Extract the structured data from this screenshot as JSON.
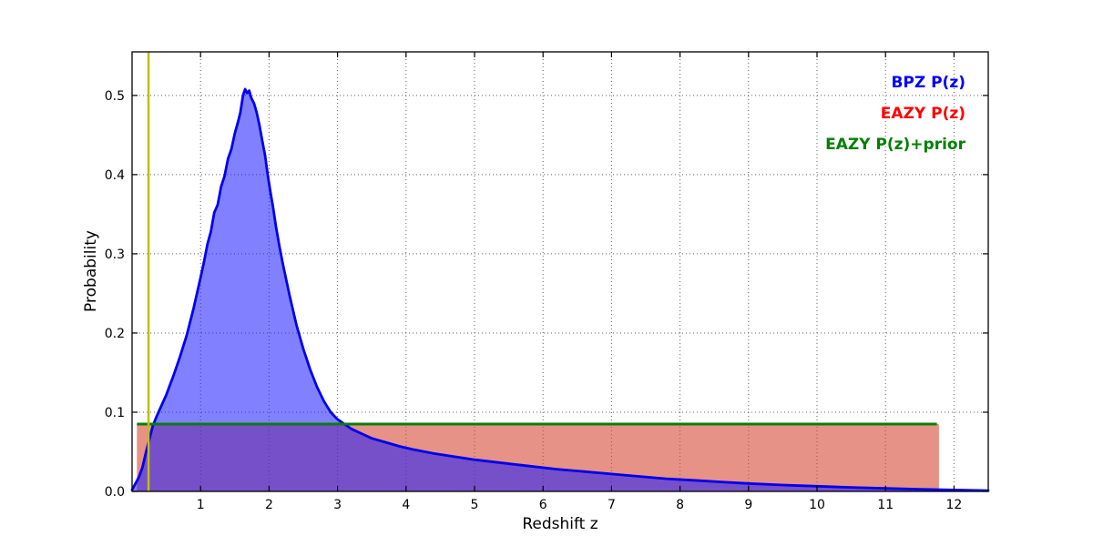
{
  "page": {
    "background": "#ffffff"
  },
  "chart_data": {
    "type": "area",
    "title": "",
    "xlabel": "Redshift z",
    "ylabel": "Probability",
    "xlim": [
      0,
      12.5
    ],
    "ylim": [
      0,
      0.555
    ],
    "grid": {
      "show": true,
      "style": "dotted",
      "color": "#606060"
    },
    "xticks": {
      "values": [
        1,
        2,
        3,
        4,
        5,
        6,
        7,
        8,
        9,
        10,
        11,
        12
      ],
      "labels": [
        "1",
        "2",
        "3",
        "4",
        "5",
        "6",
        "7",
        "8",
        "9",
        "10",
        "11",
        "12"
      ]
    },
    "yticks": {
      "values": [
        0.0,
        0.1,
        0.2,
        0.3,
        0.4,
        0.5
      ],
      "labels": [
        "0.0",
        "0.1",
        "0.2",
        "0.3",
        "0.4",
        "0.5"
      ]
    },
    "legend": {
      "position": "upper right",
      "items": [
        {
          "label": "BPZ P(z)",
          "color": "#0000ff"
        },
        {
          "label": "EAZY P(z)",
          "color": "#ff0000"
        },
        {
          "label": "EAZY P(z)+prior",
          "color": "#008000"
        }
      ]
    },
    "series": [
      {
        "name": "EAZY P(z)",
        "type": "area",
        "line_color": null,
        "line_width": 0,
        "fill_color": "#d4432e",
        "fill_opacity": 0.58,
        "close_to_zero": false,
        "points": [
          [
            0.07,
            0.0
          ],
          [
            0.07,
            0.085
          ],
          [
            11.78,
            0.085
          ],
          [
            11.78,
            0.0
          ]
        ]
      },
      {
        "name": "BPZ P(z)",
        "type": "area",
        "line_color": "#0000ee",
        "line_width": 2.8,
        "fill_color": "#1a1aff",
        "fill_opacity": 0.55,
        "close_to_zero": true,
        "points": [
          [
            0.0,
            0.002
          ],
          [
            0.1,
            0.018
          ],
          [
            0.15,
            0.03
          ],
          [
            0.2,
            0.048
          ],
          [
            0.25,
            0.065
          ],
          [
            0.3,
            0.082
          ],
          [
            0.35,
            0.093
          ],
          [
            0.4,
            0.103
          ],
          [
            0.5,
            0.122
          ],
          [
            0.6,
            0.145
          ],
          [
            0.7,
            0.17
          ],
          [
            0.8,
            0.198
          ],
          [
            0.9,
            0.232
          ],
          [
            1.0,
            0.27
          ],
          [
            1.05,
            0.29
          ],
          [
            1.1,
            0.312
          ],
          [
            1.15,
            0.328
          ],
          [
            1.2,
            0.352
          ],
          [
            1.25,
            0.362
          ],
          [
            1.3,
            0.385
          ],
          [
            1.35,
            0.398
          ],
          [
            1.4,
            0.42
          ],
          [
            1.45,
            0.432
          ],
          [
            1.5,
            0.452
          ],
          [
            1.55,
            0.468
          ],
          [
            1.58,
            0.478
          ],
          [
            1.62,
            0.5
          ],
          [
            1.65,
            0.508
          ],
          [
            1.68,
            0.503
          ],
          [
            1.71,
            0.506
          ],
          [
            1.74,
            0.497
          ],
          [
            1.78,
            0.49
          ],
          [
            1.82,
            0.478
          ],
          [
            1.86,
            0.462
          ],
          [
            1.9,
            0.443
          ],
          [
            1.94,
            0.425
          ],
          [
            1.98,
            0.4
          ],
          [
            2.02,
            0.378
          ],
          [
            2.06,
            0.358
          ],
          [
            2.1,
            0.335
          ],
          [
            2.15,
            0.31
          ],
          [
            2.2,
            0.288
          ],
          [
            2.3,
            0.247
          ],
          [
            2.4,
            0.21
          ],
          [
            2.5,
            0.18
          ],
          [
            2.6,
            0.154
          ],
          [
            2.7,
            0.132
          ],
          [
            2.8,
            0.114
          ],
          [
            2.9,
            0.1
          ],
          [
            3.0,
            0.091
          ],
          [
            3.1,
            0.085
          ],
          [
            3.2,
            0.079
          ],
          [
            3.35,
            0.073
          ],
          [
            3.5,
            0.067
          ],
          [
            3.7,
            0.062
          ],
          [
            3.9,
            0.057
          ],
          [
            4.1,
            0.053
          ],
          [
            4.4,
            0.048
          ],
          [
            4.7,
            0.044
          ],
          [
            5.0,
            0.04
          ],
          [
            5.4,
            0.036
          ],
          [
            5.8,
            0.032
          ],
          [
            6.2,
            0.028
          ],
          [
            6.6,
            0.025
          ],
          [
            7.0,
            0.022
          ],
          [
            7.4,
            0.019
          ],
          [
            7.8,
            0.016
          ],
          [
            8.2,
            0.014
          ],
          [
            8.6,
            0.012
          ],
          [
            9.0,
            0.01
          ],
          [
            9.5,
            0.008
          ],
          [
            10.0,
            0.0065
          ],
          [
            10.5,
            0.005
          ],
          [
            11.0,
            0.0038
          ],
          [
            11.5,
            0.0028
          ],
          [
            12.0,
            0.0018
          ],
          [
            12.5,
            0.001
          ]
        ]
      },
      {
        "name": "EAZY P(z)+prior",
        "type": "line",
        "line_color": "#0a7d0a",
        "line_width": 3,
        "points": [
          [
            0.07,
            0.085
          ],
          [
            11.75,
            0.085
          ]
        ]
      },
      {
        "name": "redshift marker",
        "type": "vline",
        "x": 0.24,
        "line_color": "#bfbf00",
        "line_width": 2.5
      }
    ]
  }
}
